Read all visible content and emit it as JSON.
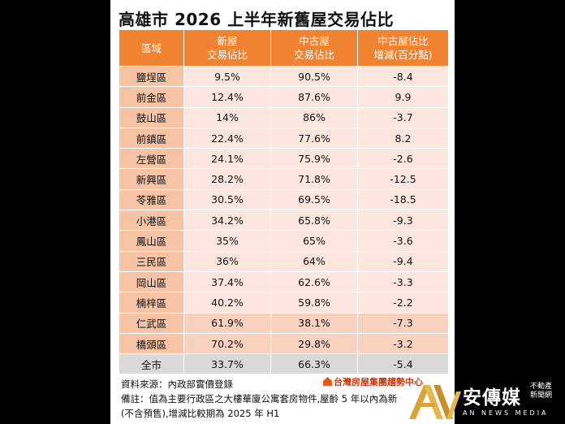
{
  "title": "高雄市 2026 上半年新舊屋交易佔比",
  "headers": {
    "region": "區域",
    "new_line1": "新屋",
    "new_line2": "交易佔比",
    "old_line1": "中古屋",
    "old_line2": "交易佔比",
    "change_line1": "中古屋佔比",
    "change_line2": "增減(百分點)"
  },
  "rows": [
    {
      "region": "鹽埕區",
      "new": "9.5%",
      "old": "90.5%",
      "change": "-8.4",
      "old_red": true,
      "change_red": false
    },
    {
      "region": "前金區",
      "new": "12.4%",
      "old": "87.6%",
      "change": "9.9",
      "old_red": false,
      "change_red": true
    },
    {
      "region": "鼓山區",
      "new": "14%",
      "old": "86%",
      "change": "-3.7",
      "old_red": false,
      "change_red": false
    },
    {
      "region": "前鎮區",
      "new": "22.4%",
      "old": "77.6%",
      "change": "8.2",
      "old_red": false,
      "change_red": false
    },
    {
      "region": "左營區",
      "new": "24.1%",
      "old": "75.9%",
      "change": "-2.6",
      "old_red": false,
      "change_red": false
    },
    {
      "region": "新興區",
      "new": "28.2%",
      "old": "71.8%",
      "change": "-12.5",
      "old_red": false,
      "change_red": false
    },
    {
      "region": "苓雅區",
      "new": "30.5%",
      "old": "69.5%",
      "change": "-18.5",
      "old_red": false,
      "change_red": false
    },
    {
      "region": "小港區",
      "new": "34.2%",
      "old": "65.8%",
      "change": "-9.3",
      "old_red": false,
      "change_red": false
    },
    {
      "region": "鳳山區",
      "new": "35%",
      "old": "65%",
      "change": "-3.6",
      "old_red": false,
      "change_red": false
    },
    {
      "region": "三民區",
      "new": "36%",
      "old": "64%",
      "change": "-9.4",
      "old_red": false,
      "change_red": false
    },
    {
      "region": "岡山區",
      "new": "37.4%",
      "old": "62.6%",
      "change": "-3.3",
      "old_red": false,
      "change_red": false
    },
    {
      "region": "楠梓區",
      "new": "40.2%",
      "old": "59.8%",
      "change": "-2.2",
      "old_red": false,
      "change_red": false
    },
    {
      "region": "仁武區",
      "new": "61.9%",
      "old": "38.1%",
      "change": "-7.3",
      "old_red": false,
      "change_red": false
    },
    {
      "region": "橋頭區",
      "new": "70.2%",
      "old": "29.8%",
      "change": "-3.2",
      "old_red": false,
      "change_red": false
    }
  ],
  "total": {
    "region": "全市",
    "new": "33.7%",
    "old": "66.3%",
    "change": "-5.4"
  },
  "source": "資料來源：內政部實價登錄",
  "note_line1": "備註：值為主要行政區之大樓華廈公寓套房物件,屋齡 5 年以內為新",
  "note_line2": "(不含預售),增減比較期為 2025 年 H1",
  "brand": "台灣房屋集團趨勢中心",
  "watermark": {
    "cn": "安傳媒",
    "sub": "不動產新聞網",
    "en": "AN NEWS MEDIA"
  },
  "colors": {
    "header_bg": "#f08331",
    "region_bg": "#f6c3a4",
    "row_light": "#fde6de",
    "row_dark": "#f8d1bf",
    "total_bg": "#d9d9d9",
    "highlight_text": "#c0272d"
  }
}
